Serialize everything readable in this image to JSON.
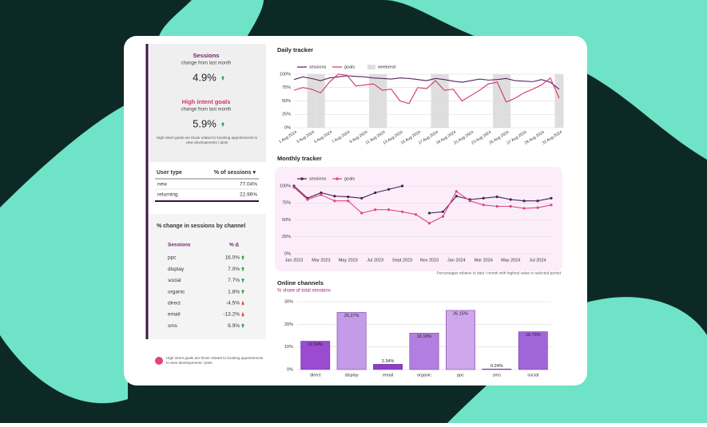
{
  "panel": {
    "kpis": [
      {
        "title": "Sessions",
        "subtitle": "change from last month",
        "value": "4.9%"
      },
      {
        "title": "High intent goals",
        "subtitle": "change from last month",
        "value": "5.9%"
      }
    ],
    "note": "High intent goals are those related to booking appointments to view developments / plots",
    "user_table": {
      "header": [
        "User type",
        "% of sessions ▾"
      ],
      "rows": [
        [
          "new",
          "77.04%"
        ],
        [
          "returning",
          "22.96%"
        ]
      ]
    },
    "channel_table": {
      "title": "% change in sessions by channel",
      "header": [
        "Sessions",
        "% Δ"
      ],
      "rows": [
        [
          "ppc",
          "16.0%"
        ],
        [
          "display",
          "7.0%"
        ],
        [
          "social",
          "7.7%"
        ],
        [
          "organic",
          "1.8%"
        ],
        [
          "direct",
          "-4.5%"
        ],
        [
          "email",
          "-13.2%"
        ],
        [
          "sms",
          "9.9%"
        ]
      ]
    },
    "footer_note": "High intent goals are those related to booking appointments to view developments / plots"
  },
  "chart_data": [
    {
      "type": "line",
      "title": "Daily tracker",
      "categories": [
        "1 Aug 2024",
        null,
        "3 Aug 2024",
        null,
        "5 Aug 2024",
        null,
        "7 Aug 2024",
        null,
        "9 Aug 2024",
        null,
        "11 Aug 2024",
        null,
        "13 Aug 2024",
        null,
        "15 Aug 2024",
        null,
        "17 Aug 2024",
        null,
        "19 Aug 2024",
        null,
        "21 Aug 2024",
        null,
        "23 Aug 2024",
        null,
        "25 Aug 2024",
        null,
        "27 Aug 2024",
        null,
        "29 Aug 2024",
        null,
        "31 Aug 2024"
      ],
      "series": [
        {
          "name": "sessions",
          "color": "#5a2360",
          "values": [
            90,
            95,
            92,
            88,
            93,
            95,
            97,
            96,
            95,
            93,
            92,
            91,
            93,
            92,
            90,
            88,
            92,
            90,
            87,
            85,
            88,
            91,
            89,
            90,
            92,
            88,
            87,
            86,
            90,
            85,
            72
          ]
        },
        {
          "name": "goals",
          "color": "#d6336c",
          "values": [
            70,
            75,
            72,
            65,
            85,
            100,
            98,
            78,
            80,
            82,
            70,
            72,
            50,
            45,
            75,
            73,
            88,
            70,
            72,
            50,
            60,
            70,
            82,
            85,
            48,
            55,
            65,
            72,
            80,
            93,
            55
          ]
        }
      ],
      "shading": {
        "name": "weekend",
        "color": "#dedede",
        "indices": [
          2,
          3,
          9,
          10,
          16,
          17,
          23,
          24,
          30
        ]
      },
      "ylim": [
        0,
        100
      ],
      "yticks": [
        {
          "value": 0,
          "label": "0%"
        },
        {
          "value": 25,
          "label": "25%"
        },
        {
          "value": 50,
          "label": "50%"
        },
        {
          "value": 75,
          "label": "75%"
        },
        {
          "value": 100,
          "label": "100%"
        }
      ],
      "grid": true,
      "markers": false
    },
    {
      "type": "line",
      "title": "Monthly tracker",
      "categories": [
        "Jan 2023",
        null,
        "Mar 2023",
        null,
        "May 2023",
        null,
        "Jul 2023",
        null,
        "Sept 2023",
        null,
        "Nov 2023",
        null,
        "Jan 2024",
        null,
        "Mar 2024",
        null,
        "May 2024",
        null,
        "Jul 2024",
        null
      ],
      "series": [
        {
          "name": "sessions",
          "color": "#4a1f4f",
          "values": [
            100,
            82,
            90,
            85,
            84,
            82,
            90,
            95,
            100,
            null,
            60,
            62,
            85,
            80,
            82,
            84,
            80,
            78,
            78,
            82
          ]
        },
        {
          "name": "goals",
          "color": "#e0457b",
          "values": [
            98,
            80,
            87,
            78,
            78,
            60,
            65,
            65,
            62,
            58,
            45,
            55,
            92,
            78,
            72,
            70,
            70,
            67,
            68,
            72
          ]
        }
      ],
      "ylim": [
        0,
        100
      ],
      "yticks": [
        {
          "value": 0,
          "label": "0%"
        },
        {
          "value": 25,
          "label": "25%"
        },
        {
          "value": 50,
          "label": "50%"
        },
        {
          "value": 75,
          "label": "75%"
        },
        {
          "value": 100,
          "label": "100%"
        }
      ],
      "grid": true,
      "markers": true,
      "background": "#fbeefa",
      "footnote": "Percentages relative to date / month with highest value in selected period"
    },
    {
      "type": "bar",
      "title": "Online channels",
      "subtitle": "% share of total sessions",
      "categories": [
        "direct",
        "display",
        "email",
        "organic",
        "ppc",
        "sms",
        "social"
      ],
      "values": [
        12.54,
        25.27,
        2.34,
        16.1,
        26.15,
        0.24,
        16.73
      ],
      "value_labels": [
        "12.54%",
        "25.27%",
        "2.34%",
        "16.10%",
        "26.15%",
        "0.24%",
        "16.73%"
      ],
      "colors": [
        "#9a4bd0",
        "#c49be8",
        "#8a3fc4",
        "#b27fe0",
        "#cfa8ec",
        "#8a3fc4",
        "#a066d8"
      ],
      "ylim": [
        0,
        30
      ],
      "yticks": [
        {
          "value": 0,
          "label": "0%"
        },
        {
          "value": 10,
          "label": "10%"
        },
        {
          "value": 20,
          "label": "20%"
        },
        {
          "value": 30,
          "label": "30%"
        }
      ],
      "grid": true
    }
  ]
}
